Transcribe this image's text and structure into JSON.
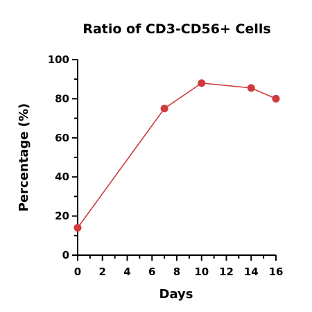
{
  "chart_data": {
    "type": "line",
    "title": "Ratio of CD3-CD56+ Cells",
    "xlabel": "Days",
    "ylabel": "Percentage (%)",
    "xlim": [
      0,
      16
    ],
    "ylim": [
      0,
      100
    ],
    "xticks": [
      0,
      2,
      4,
      6,
      8,
      10,
      12,
      14,
      16
    ],
    "yticks": [
      0,
      20,
      40,
      60,
      80,
      100
    ],
    "grid": false,
    "series": [
      {
        "x": [
          0,
          7,
          10,
          14,
          16
        ],
        "y": [
          14,
          75,
          88,
          85.5,
          80
        ],
        "color": "#d0393d"
      }
    ]
  }
}
